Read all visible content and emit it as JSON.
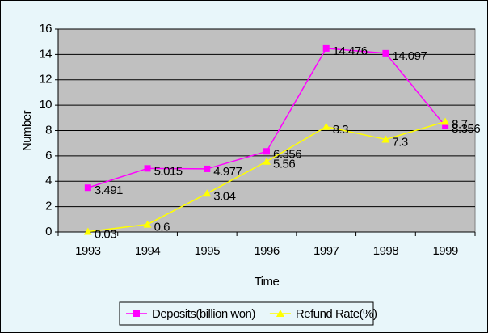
{
  "chart_data": {
    "type": "line",
    "x_label": "Time",
    "y_label": "Number",
    "categories": [
      "1993",
      "1994",
      "1995",
      "1996",
      "1997",
      "1998",
      "1999"
    ],
    "series": [
      {
        "name": "Deposits(billion won)",
        "color": "#ff00ff",
        "marker": "square",
        "values": [
          3.491,
          5.015,
          4.977,
          6.356,
          14.476,
          14.097,
          8.356
        ]
      },
      {
        "name": "Refund Rate(%)",
        "color": "#ffff00",
        "marker": "triangle",
        "values": [
          0.03,
          0.6,
          3.04,
          5.56,
          8.3,
          7.3,
          8.7
        ]
      }
    ],
    "ylim": [
      0,
      16
    ],
    "yticks": [
      0,
      2,
      4,
      6,
      8,
      10,
      12,
      14,
      16
    ],
    "grid": true,
    "legend": "bottom",
    "plot_background": "#c0c0c0"
  }
}
